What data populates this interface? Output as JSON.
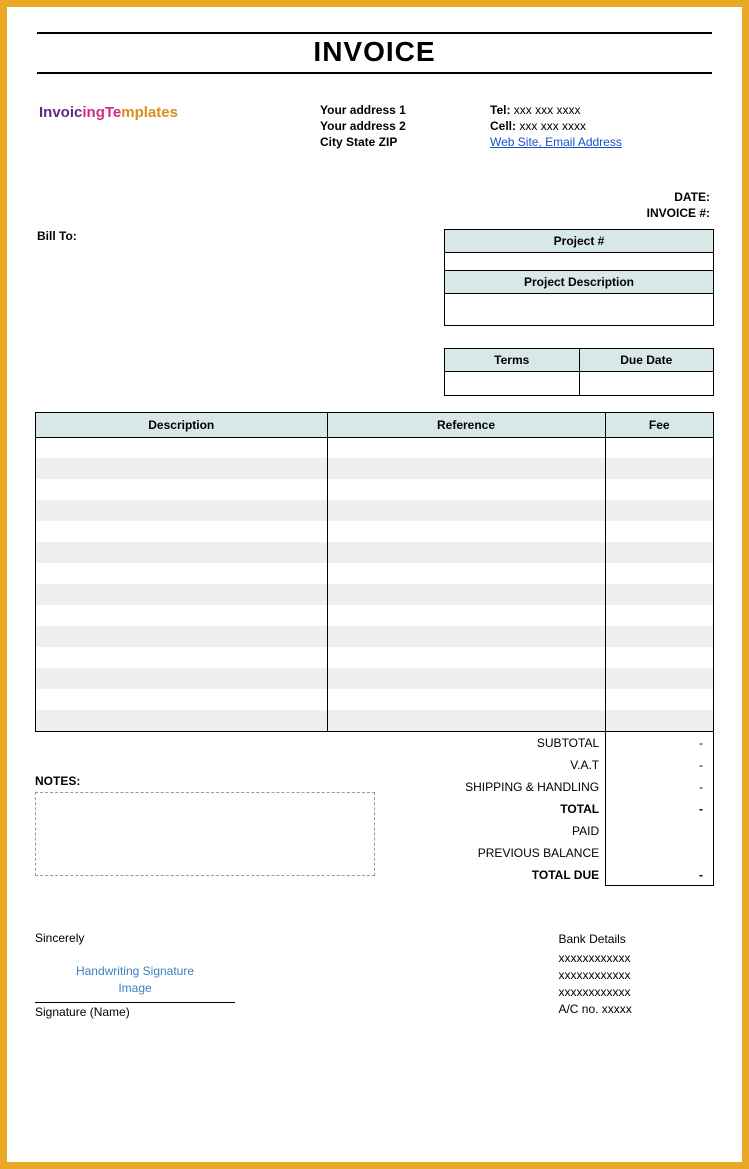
{
  "colors": {
    "frame_border": "#e9a825",
    "header_bg": "#d8e7e7",
    "stripe_bg": "#efefef",
    "link": "#1a4ec9",
    "sig_text": "#3a7fc4",
    "notes_border": "#9a9a9a"
  },
  "title": "INVOICE",
  "logo": {
    "part1": "Invoic",
    "part2": "ingTe",
    "part3": "mplates"
  },
  "address": {
    "line1": "Your address 1",
    "line2": "Your address 2",
    "line3": "City State ZIP"
  },
  "contact": {
    "tel_label": "Tel:",
    "tel": "xxx xxx xxxx",
    "cell_label": "Cell:",
    "cell": "xxx xxx xxxx",
    "link_text": "Web Site, Email Address"
  },
  "meta": {
    "bill_to_label": "Bill To:",
    "date_label": "DATE:",
    "invoice_no_label": "INVOICE #:"
  },
  "project_box": {
    "project_no_header": "Project #",
    "project_no_value": "",
    "project_desc_header": "Project Description",
    "project_desc_value": ""
  },
  "terms_box": {
    "terms_header": "Terms",
    "due_date_header": "Due Date",
    "terms_value": "",
    "due_date_value": ""
  },
  "items": {
    "columns": {
      "description": "Description",
      "reference": "Reference",
      "fee": "Fee"
    },
    "row_count": 14,
    "rows": [
      {
        "description": "",
        "reference": "",
        "fee": ""
      },
      {
        "description": "",
        "reference": "",
        "fee": ""
      },
      {
        "description": "",
        "reference": "",
        "fee": ""
      },
      {
        "description": "",
        "reference": "",
        "fee": ""
      },
      {
        "description": "",
        "reference": "",
        "fee": ""
      },
      {
        "description": "",
        "reference": "",
        "fee": ""
      },
      {
        "description": "",
        "reference": "",
        "fee": ""
      },
      {
        "description": "",
        "reference": "",
        "fee": ""
      },
      {
        "description": "",
        "reference": "",
        "fee": ""
      },
      {
        "description": "",
        "reference": "",
        "fee": ""
      },
      {
        "description": "",
        "reference": "",
        "fee": ""
      },
      {
        "description": "",
        "reference": "",
        "fee": ""
      },
      {
        "description": "",
        "reference": "",
        "fee": ""
      },
      {
        "description": "",
        "reference": "",
        "fee": ""
      }
    ]
  },
  "totals": {
    "rows": [
      {
        "label": "SUBTOTAL",
        "value": "-"
      },
      {
        "label": "V.A.T",
        "value": "-"
      },
      {
        "label": "SHIPPING & HANDLING",
        "value": "-"
      },
      {
        "label": "TOTAL",
        "value": "-"
      },
      {
        "label": "PAID",
        "value": ""
      },
      {
        "label": "PREVIOUS BALANCE",
        "value": ""
      },
      {
        "label": "TOTAL DUE",
        "value": "-"
      }
    ],
    "bold_rows": [
      3,
      6
    ]
  },
  "notes": {
    "label": "NOTES:",
    "text": ""
  },
  "signature": {
    "sincerely": "Sincerely",
    "placeholder_line1": "Handwriting Signature",
    "placeholder_line2": "Image",
    "caption": "Signature (Name)"
  },
  "bank": {
    "header": "Bank Details",
    "line1": "xxxxxxxxxxxx",
    "line2": "xxxxxxxxxxxx",
    "line3": "xxxxxxxxxxxx",
    "line4": "A/C no. xxxxx"
  }
}
